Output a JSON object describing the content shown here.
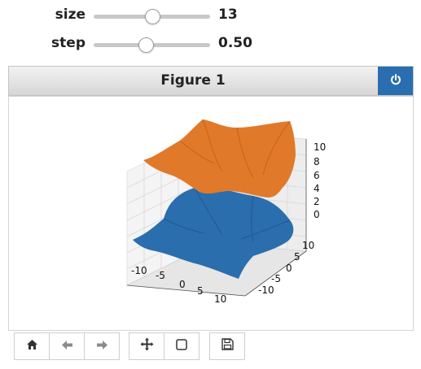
{
  "controls": {
    "size": {
      "label": "size",
      "value": "13",
      "fraction": 0.5
    },
    "step": {
      "label": "step",
      "value": "0.50",
      "fraction": 0.45
    }
  },
  "figure": {
    "title": "Figure 1",
    "close_icon": "power-icon"
  },
  "plot": {
    "z_ticks": [
      "10",
      "8",
      "6",
      "4",
      "2",
      "0"
    ],
    "x_ticks": [
      "-10",
      "-5",
      "0",
      "5",
      "10"
    ],
    "y_ticks": [
      "10",
      "5",
      "0",
      "-5",
      "-10"
    ],
    "colors": {
      "upper_surface": "#e07a2a",
      "lower_surface": "#2a6eae"
    }
  },
  "toolbar": {
    "home_icon": "home-icon",
    "back_icon": "back-arrow-icon",
    "forward_icon": "forward-arrow-icon",
    "pan_icon": "move-icon",
    "zoom_icon": "zoom-rect-icon",
    "save_icon": "save-icon"
  }
}
